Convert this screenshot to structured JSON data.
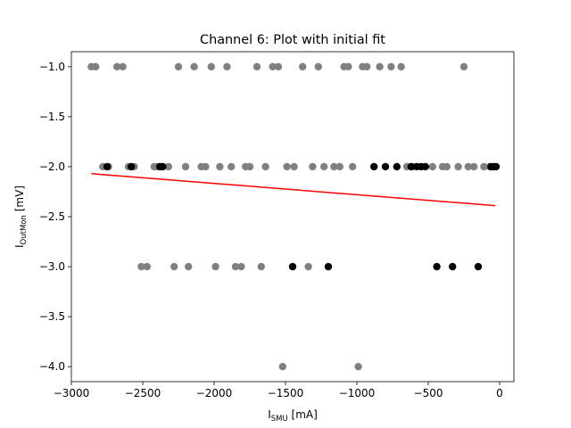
{
  "chart_data": {
    "type": "scatter",
    "title": "Channel 6: Plot with initial fit",
    "xlabel": {
      "main": "I",
      "sub": "SMU",
      "unit": " [mA]"
    },
    "ylabel": {
      "main": "I",
      "sub": "OutMon",
      "unit": " [mV]"
    },
    "xlim": [
      -3000,
      100
    ],
    "ylim": [
      -4.15,
      -0.85
    ],
    "x_ticks": [
      -3000,
      -2500,
      -2000,
      -1500,
      -1000,
      -500,
      0
    ],
    "x_tick_labels": [
      "−3000",
      "−2500",
      "−2000",
      "−1500",
      "−1000",
      "−500",
      "0"
    ],
    "y_ticks": [
      -1.0,
      -1.5,
      -2.0,
      -2.5,
      -3.0,
      -3.5,
      -4.0
    ],
    "y_tick_labels": [
      "−1.0",
      "−1.5",
      "−2.0",
      "−2.5",
      "−3.0",
      "−3.5",
      "−4.0"
    ],
    "grid": false,
    "colors": {
      "gray_points": "#808080",
      "black_points": "#000000",
      "fit_line": "#ff0000"
    },
    "series": [
      {
        "marker": "circle",
        "color": "#808080",
        "points": [
          [
            -2860,
            -1.0
          ],
          [
            -2830,
            -1.0
          ],
          [
            -2680,
            -1.0
          ],
          [
            -2640,
            -1.0
          ],
          [
            -2250,
            -1.0
          ],
          [
            -2140,
            -1.0
          ],
          [
            -2020,
            -1.0
          ],
          [
            -1910,
            -1.0
          ],
          [
            -1700,
            -1.0
          ],
          [
            -1590,
            -1.0
          ],
          [
            -1550,
            -1.0
          ],
          [
            -1380,
            -1.0
          ],
          [
            -1270,
            -1.0
          ],
          [
            -1090,
            -1.0
          ],
          [
            -1060,
            -1.0
          ],
          [
            -960,
            -1.0
          ],
          [
            -930,
            -1.0
          ],
          [
            -840,
            -1.0
          ],
          [
            -760,
            -1.0
          ],
          [
            -690,
            -1.0
          ],
          [
            -250,
            -1.0
          ],
          [
            -2780,
            -2.0
          ],
          [
            -2740,
            -2.0
          ],
          [
            -2600,
            -2.0
          ],
          [
            -2560,
            -2.0
          ],
          [
            -2420,
            -2.0
          ],
          [
            -2400,
            -2.0
          ],
          [
            -2320,
            -2.0
          ],
          [
            -2200,
            -2.0
          ],
          [
            -2090,
            -2.0
          ],
          [
            -2060,
            -2.0
          ],
          [
            -1960,
            -2.0
          ],
          [
            -1880,
            -2.0
          ],
          [
            -1780,
            -2.0
          ],
          [
            -1750,
            -2.0
          ],
          [
            -1640,
            -2.0
          ],
          [
            -1490,
            -2.0
          ],
          [
            -1440,
            -2.0
          ],
          [
            -1310,
            -2.0
          ],
          [
            -1230,
            -2.0
          ],
          [
            -1160,
            -2.0
          ],
          [
            -1120,
            -2.0
          ],
          [
            -1030,
            -2.0
          ],
          [
            -650,
            -2.0
          ],
          [
            -610,
            -2.0
          ],
          [
            -470,
            -2.0
          ],
          [
            -400,
            -2.0
          ],
          [
            -370,
            -2.0
          ],
          [
            -290,
            -2.0
          ],
          [
            -220,
            -2.0
          ],
          [
            -180,
            -2.0
          ],
          [
            -110,
            -2.0
          ],
          [
            -70,
            -2.0
          ],
          [
            -2510,
            -3.0
          ],
          [
            -2470,
            -3.0
          ],
          [
            -2280,
            -3.0
          ],
          [
            -2180,
            -3.0
          ],
          [
            -1990,
            -3.0
          ],
          [
            -1850,
            -3.0
          ],
          [
            -1810,
            -3.0
          ],
          [
            -1670,
            -3.0
          ],
          [
            -1340,
            -3.0
          ],
          [
            -1520,
            -4.0
          ],
          [
            -990,
            -4.0
          ]
        ]
      },
      {
        "marker": "circle",
        "color": "#000000",
        "points": [
          [
            -2750,
            -2.0
          ],
          [
            -2580,
            -2.0
          ],
          [
            -2380,
            -2.0
          ],
          [
            -2360,
            -2.0
          ],
          [
            -880,
            -2.0
          ],
          [
            -800,
            -2.0
          ],
          [
            -720,
            -2.0
          ],
          [
            -620,
            -2.0
          ],
          [
            -580,
            -2.0
          ],
          [
            -550,
            -2.0
          ],
          [
            -520,
            -2.0
          ],
          [
            -60,
            -2.0
          ],
          [
            -40,
            -2.0
          ],
          [
            -25,
            -2.0
          ],
          [
            -1450,
            -3.0
          ],
          [
            -1200,
            -3.0
          ],
          [
            -440,
            -3.0
          ],
          [
            -330,
            -3.0
          ],
          [
            -150,
            -3.0
          ]
        ]
      },
      {
        "marker": "line",
        "color": "#ff0000",
        "x": [
          -2860,
          -30
        ],
        "y": [
          -2.07,
          -2.39
        ]
      }
    ]
  }
}
